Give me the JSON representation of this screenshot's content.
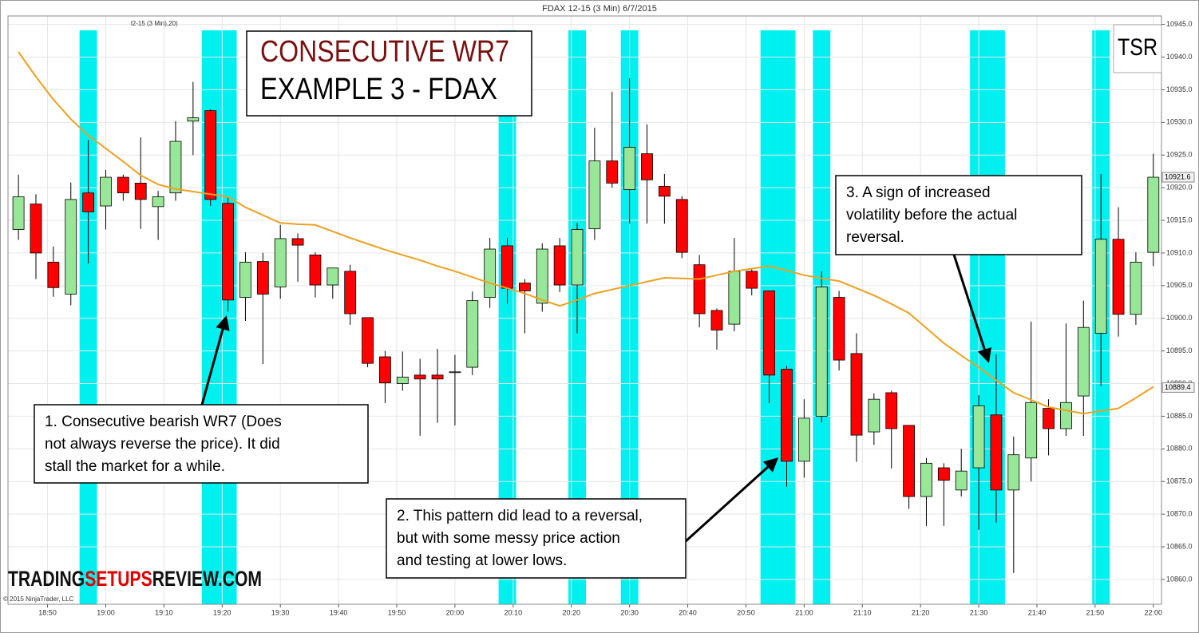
{
  "chart_data": {
    "type": "candlestick",
    "title": "FDAX 12-15 (3 Min)  6/7/2015",
    "indicator_label": "l2-15 (3 Min),20)",
    "copyright": "© 2015 NinjaTrader, LLC",
    "headline": [
      "CONSECUTIVE WR7",
      "EXAMPLE 3 - FDAX"
    ],
    "logo": "TSR",
    "watermark": [
      "TRADING",
      "SETUPS",
      "REVIEW.COM"
    ],
    "xlim": [
      1123.2,
      1321.4
    ],
    "ylim": [
      10856.2,
      10946.3
    ],
    "grid": true,
    "x": [
      1125,
      1128,
      1131,
      1134,
      1137,
      1140,
      1143,
      1146,
      1149,
      1152,
      1155,
      1158,
      1161,
      1164,
      1167,
      1170,
      1173,
      1176,
      1179,
      1182,
      1185,
      1188,
      1191,
      1194,
      1197,
      1200,
      1203,
      1206,
      1209,
      1212,
      1215,
      1218,
      1221,
      1224,
      1227,
      1230,
      1233,
      1236,
      1239,
      1242,
      1245,
      1248,
      1251,
      1254,
      1257,
      1260,
      1263,
      1266,
      1269,
      1272,
      1275,
      1278,
      1281,
      1284,
      1287,
      1290,
      1293,
      1296,
      1299,
      1302,
      1305,
      1308,
      1311,
      1314,
      1317,
      1320
    ],
    "open": [
      10913.6,
      10917.5,
      10908.6,
      10903.7,
      10919.2,
      10917.2,
      10921.6,
      10920.7,
      10917.1,
      10919.2,
      10930.2,
      10931.8,
      10917.6,
      10903.2,
      10908.7,
      10904.8,
      10912.2,
      10909.7,
      10905.1,
      10907.2,
      10900.1,
      10894.1,
      10890,
      10891.3,
      10891.3,
      10891.7,
      10892.5,
      10903.2,
      10911.1,
      10905.4,
      10902.3,
      10911.1,
      10905.1,
      10913.7,
      10924.1,
      10919.7,
      10925.2,
      10920.2,
      10918.2,
      10908.2,
      10901.2,
      10899.1,
      10907.2,
      10904.2,
      10892.2,
      10878.1,
      10885,
      10903.2,
      10894.6,
      10882.6,
      10888.6,
      10883.6,
      10872.7,
      10877.1,
      10873.7,
      10877.1,
      10885.2,
      10873.7,
      10878.6,
      10886.2,
      10883.1,
      10888.1,
      10897.7,
      10912.1,
      10900.6,
      10910.1
    ],
    "high": [
      10922,
      10919,
      10911,
      10920.8,
      10927.3,
      10922.7,
      10922,
      10927.7,
      10919.5,
      10930.2,
      10936.2,
      10932,
      10918.6,
      10910.1,
      10910,
      10914.3,
      10913,
      10910.1,
      10907.7,
      10908.2,
      10900.1,
      10895,
      10894.9,
      10893.8,
      10895.3,
      10894.4,
      10904.1,
      10912.3,
      10912.3,
      10906,
      10911.5,
      10912.3,
      10914.6,
      10929.2,
      10934.7,
      10936.8,
      10929.7,
      10922.1,
      10918.7,
      10909.7,
      10901.5,
      10912.3,
      10907.5,
      10904.2,
      10892.7,
      10887.6,
      10907.2,
      10904.2,
      10897.7,
      10888.5,
      10888.9,
      10883.6,
      10878.6,
      10877.8,
      10880,
      10888.2,
      10894.5,
      10881.9,
      10899.5,
      10887.6,
      10899.2,
      10902.7,
      10922.1,
      10917,
      10910.1,
      10925.2
    ],
    "low": [
      10912,
      10906,
      10903.3,
      10902,
      10908.4,
      10913.6,
      10918,
      10913.7,
      10912,
      10918,
      10925,
      10917.2,
      10901,
      10899.6,
      10893,
      10903,
      10905.6,
      10903.2,
      10903,
      10899,
      10892.5,
      10887,
      10888.9,
      10882,
      10884,
      10883.6,
      10891.3,
      10901.6,
      10902.2,
      10897.7,
      10901,
      10904,
      10897.7,
      10912,
      10920,
      10914.5,
      10914.5,
      10914.5,
      10909.2,
      10898.6,
      10895.2,
      10898,
      10903.5,
      10887,
      10874.2,
      10875.6,
      10884,
      10892,
      10878,
      10880.6,
      10877,
      10870.8,
      10868.2,
      10868.2,
      10872.7,
      10867.6,
      10868.7,
      10861,
      10875,
      10879,
      10882,
      10882,
      10889.6,
      10897.2,
      10899,
      10908
    ],
    "close": [
      10918.6,
      10910,
      10904.7,
      10918.2,
      10916.3,
      10921.6,
      10919.2,
      10918.2,
      10918.6,
      10927.1,
      10930.7,
      10918.2,
      10902.8,
      10908.6,
      10903.7,
      10912.2,
      10911.2,
      10905.1,
      10907.7,
      10900.7,
      10893.1,
      10890.1,
      10891,
      10890.7,
      10890.7,
      10891.8,
      10902.7,
      10910.6,
      10904.6,
      10904.2,
      10910.6,
      10905.1,
      10913.6,
      10924.1,
      10920.7,
      10926.2,
      10921.2,
      10918.7,
      10910.1,
      10900.7,
      10898.2,
      10907.2,
      10904.6,
      10891.3,
      10878.1,
      10884.7,
      10904.8,
      10893.6,
      10882.1,
      10887.6,
      10883.1,
      10872.7,
      10877.8,
      10875.2,
      10876.6,
      10886.6,
      10873.7,
      10879.1,
      10887.1,
      10883.1,
      10887.1,
      10898.6,
      10912.1,
      10900.6,
      10908.6,
      10921.6
    ],
    "up_color": "#98e698",
    "down_color": "#ff0000",
    "ma": {
      "color": "#f0a020",
      "values": [
        10940.8,
        10937,
        10933.5,
        10930.5,
        10928,
        10926,
        10924,
        10921.9,
        10920.5,
        10919.8,
        10919.4,
        10919,
        10918.6,
        10917,
        10915.8,
        10914.6,
        10914.4,
        10914.3,
        10913.3,
        10912.3,
        10911.4,
        10910.5,
        10909.7,
        10908.9,
        10908,
        10907.2,
        10906.3,
        10905.4,
        10904.6,
        10903.8,
        10902.8,
        10901.9,
        10902.8,
        10903.8,
        10904.4,
        10905,
        10905.6,
        10906.2,
        10906.1,
        10906,
        10906.6,
        10907.2,
        10907.6,
        10908,
        10907.3,
        10906.6,
        10906.1,
        10905.7,
        10904.6,
        10903.5,
        10902.2,
        10900.8,
        10898.5,
        10896.2,
        10894.3,
        10892.5,
        10890.5,
        10888.6,
        10887.5,
        10886.4,
        10885.9,
        10885.4,
        10885.8,
        10886.2,
        10887.8,
        10889.5
      ]
    },
    "highlights": {
      "color": "#00f0f0",
      "x": [
        1137,
        1158,
        1161,
        1209,
        1221,
        1230,
        1254,
        1257,
        1263,
        1290,
        1293,
        1311
      ]
    },
    "markers": [
      10921.6,
      10889.4
    ],
    "xticks": [
      {
        "value": 1130,
        "label": "18:50"
      },
      {
        "value": 1140,
        "label": "19:00"
      },
      {
        "value": 1150,
        "label": "19:10"
      },
      {
        "value": 1160,
        "label": "19:20"
      },
      {
        "value": 1170,
        "label": "19:30"
      },
      {
        "value": 1180,
        "label": "19:40"
      },
      {
        "value": 1190,
        "label": "19:50"
      },
      {
        "value": 1200,
        "label": "20:00"
      },
      {
        "value": 1210,
        "label": "20:10"
      },
      {
        "value": 1220,
        "label": "20:20"
      },
      {
        "value": 1230,
        "label": "20:30"
      },
      {
        "value": 1240,
        "label": "20:40"
      },
      {
        "value": 1250,
        "label": "20:50"
      },
      {
        "value": 1260,
        "label": "21:00"
      },
      {
        "value": 1270,
        "label": "21:10"
      },
      {
        "value": 1280,
        "label": "21:20"
      },
      {
        "value": 1290,
        "label": "21:30"
      },
      {
        "value": 1300,
        "label": "21:40"
      },
      {
        "value": 1310,
        "label": "21:50"
      },
      {
        "value": 1320,
        "label": "22:00"
      }
    ],
    "yticks": [
      {
        "value": 10860,
        "label": "10860.0"
      },
      {
        "value": 10865,
        "label": "10865.0"
      },
      {
        "value": 10870,
        "label": "10870.0"
      },
      {
        "value": 10875,
        "label": "10875.0"
      },
      {
        "value": 10880,
        "label": "10880.0"
      },
      {
        "value": 10885,
        "label": "10885.0"
      },
      {
        "value": 10890,
        "label": "10890.0"
      },
      {
        "value": 10895,
        "label": "10895.0"
      },
      {
        "value": 10900,
        "label": "10900.0"
      },
      {
        "value": 10905,
        "label": "10905.0"
      },
      {
        "value": 10910,
        "label": "10910.0"
      },
      {
        "value": 10915,
        "label": "10915.0"
      },
      {
        "value": 10920,
        "label": "10920.0"
      },
      {
        "value": 10925,
        "label": "10925.0"
      },
      {
        "value": 10930,
        "label": "10930.0"
      },
      {
        "value": 10935,
        "label": "10935.0"
      },
      {
        "value": 10940,
        "label": "10940.0"
      },
      {
        "value": 10945,
        "label": "10945.0"
      }
    ],
    "annotations": [
      {
        "lines": [
          "1. Consecutive bearish WR7 (Does",
          "not always reverse the price). It did",
          "stall the market for a while."
        ]
      },
      {
        "lines": [
          "2. This pattern did lead to a reversal,",
          "but with some messy price action",
          "and testing at lower lows."
        ]
      },
      {
        "lines": [
          "3. A sign of increased",
          "volatility  before the actual",
          "reversal."
        ]
      }
    ]
  }
}
